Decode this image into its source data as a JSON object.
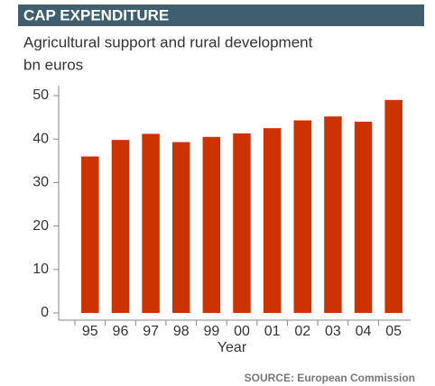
{
  "chart_data": {
    "type": "bar",
    "title": "CAP EXPENDITURE",
    "subtitle": [
      "Agricultural support and rural development",
      "bn euros"
    ],
    "x_label": "Year",
    "source": "SOURCE: European Commission",
    "categories": [
      "95",
      "96",
      "97",
      "98",
      "99",
      "00",
      "01",
      "02",
      "03",
      "04",
      "05"
    ],
    "values": [
      36,
      39.8,
      41.2,
      39.3,
      40.5,
      41.3,
      42.5,
      44.3,
      45.2,
      44,
      49
    ],
    "color": "#cc3300",
    "ylim": [
      0,
      50
    ],
    "yticks": [
      0,
      10,
      20,
      30,
      40,
      50
    ],
    "grid": false
  }
}
